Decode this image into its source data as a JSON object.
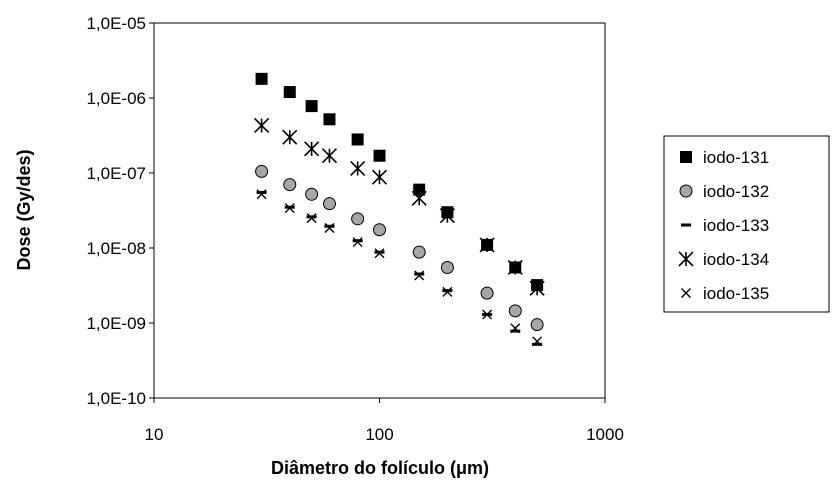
{
  "chart_data": {
    "type": "scatter",
    "title": "",
    "xlabel": "Diâmetro do folículo (μm)",
    "ylabel": "Dose (Gy/des)",
    "x_scale": "log",
    "y_scale": "log",
    "xlim": [
      10,
      1000
    ],
    "ylim": [
      1e-10,
      1e-05
    ],
    "x_ticks": [
      10,
      100,
      1000
    ],
    "x_tick_labels": [
      "10",
      "100",
      "1000"
    ],
    "y_ticks": [
      1e-10,
      1e-09,
      1e-08,
      1e-07,
      1e-06,
      1e-05
    ],
    "y_tick_labels": [
      "1,0E-10",
      "1,0E-09",
      "1,0E-08",
      "1,0E-07",
      "1,0E-06",
      "1,0E-05"
    ],
    "grid": false,
    "legend_position": "right",
    "colors": {
      "square": "#000000",
      "circle_fill": "#a6a6a6",
      "circle_stroke": "#000000"
    },
    "series": [
      {
        "name": "iodo-131",
        "marker": "square",
        "x": [
          30,
          40,
          50,
          60,
          80,
          100,
          150,
          200,
          300,
          400,
          500
        ],
        "y": [
          1.8e-06,
          1.2e-06,
          7.8e-07,
          5.2e-07,
          2.8e-07,
          1.7e-07,
          6e-08,
          3e-08,
          1.1e-08,
          5.5e-09,
          3.2e-09
        ]
      },
      {
        "name": "iodo-132",
        "marker": "circle",
        "x": [
          30,
          40,
          50,
          60,
          80,
          100,
          150,
          200,
          300,
          400,
          500
        ],
        "y": [
          1.05e-07,
          7e-08,
          5.2e-08,
          3.9e-08,
          2.45e-08,
          1.75e-08,
          8.8e-09,
          5.5e-09,
          2.5e-09,
          1.45e-09,
          9.5e-10
        ]
      },
      {
        "name": "iodo-133",
        "marker": "dash",
        "x": [
          30,
          40,
          50,
          60,
          80,
          100,
          150,
          200,
          300,
          400,
          500
        ],
        "y": [
          5.5e-08,
          3.5e-08,
          2.6e-08,
          1.95e-08,
          1.25e-08,
          8.8e-09,
          4.5e-09,
          2.7e-09,
          1.3e-09,
          7.8e-10,
          5.2e-10
        ]
      },
      {
        "name": "iodo-134",
        "marker": "asterisk",
        "x": [
          30,
          40,
          50,
          60,
          80,
          100,
          150,
          200,
          300,
          400,
          500
        ],
        "y": [
          4.3e-07,
          3e-07,
          2.1e-07,
          1.7e-07,
          1.15e-07,
          8.8e-08,
          4.6e-08,
          2.7e-08,
          1.1e-08,
          5.5e-09,
          2.9e-09
        ]
      },
      {
        "name": "iodo-135",
        "marker": "x",
        "x": [
          30,
          40,
          50,
          60,
          80,
          100,
          150,
          200,
          300,
          400,
          500
        ],
        "y": [
          5.2e-08,
          3.4e-08,
          2.5e-08,
          1.85e-08,
          1.2e-08,
          8.5e-09,
          4.3e-09,
          2.6e-09,
          1.3e-09,
          8.5e-10,
          5.7e-10
        ]
      }
    ]
  }
}
